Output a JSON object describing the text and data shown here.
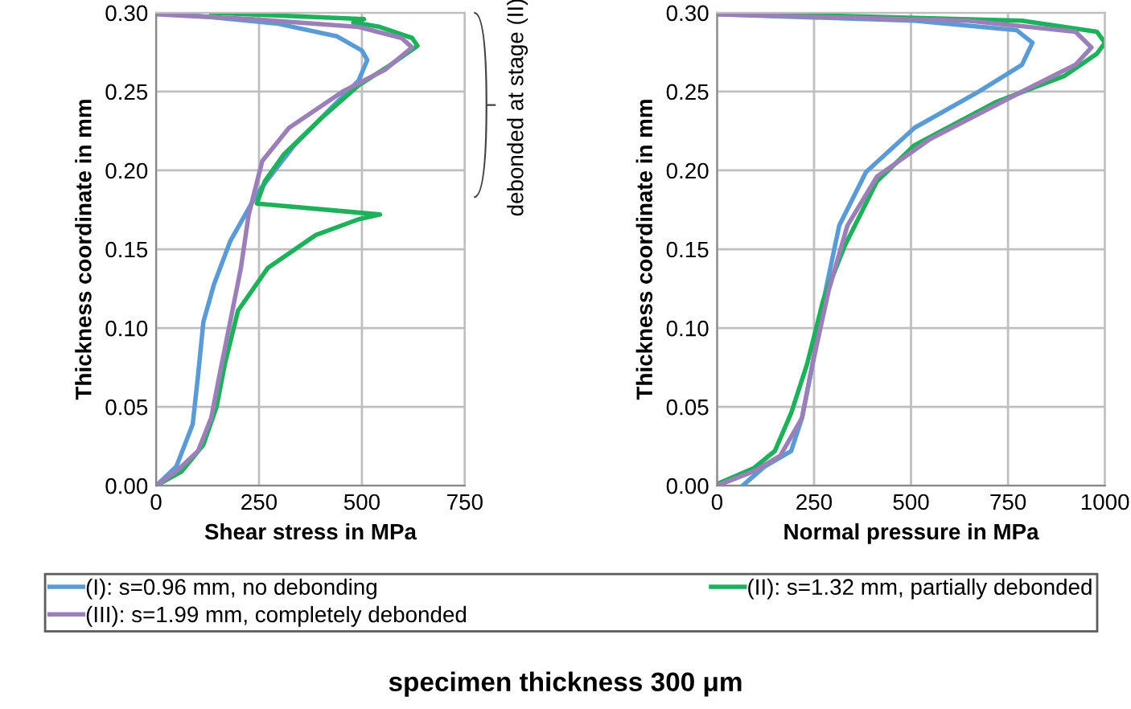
{
  "chart_data": [
    {
      "type": "line",
      "title": "specimen thickness 300 μm",
      "xlabel": "Shear stress in MPa",
      "ylabel": "Thickness coordinate in mm",
      "annotations": [
        "debonded at stage (II)"
      ],
      "xlim": [
        0,
        750
      ],
      "xticks": [
        0,
        250,
        500,
        750
      ],
      "ylim": [
        0,
        0.3
      ],
      "yticks": [
        {
          "value": 0,
          "label": "0.00"
        },
        {
          "value": 0.05,
          "label": "0.05"
        },
        {
          "value": 0.1,
          "label": "0.10"
        },
        {
          "value": 0.15,
          "label": "0.15"
        },
        {
          "value": 0.2,
          "label": "0.20"
        },
        {
          "value": 0.25,
          "label": "0.25"
        },
        {
          "value": 0.3,
          "label": "0.30"
        }
      ],
      "grid": true,
      "legend": "bottom",
      "marker": "none",
      "line_style": "solid",
      "series": [
        {
          "name": "(I): s=0.96 mm, no debonding",
          "color": "#5b9bd5",
          "x": [
            0,
            49,
            89,
            102,
            115,
            141,
            180,
            247,
            336,
            427,
            492,
            513,
            500,
            440,
            297,
            102,
            0
          ],
          "values": [
            0,
            0.012,
            0.039,
            0.07,
            0.104,
            0.128,
            0.155,
            0.186,
            0.216,
            0.24,
            0.257,
            0.27,
            0.276,
            0.285,
            0.293,
            0.298,
            0.3
          ]
        },
        {
          "name": "(II): s=1.32 mm, partially debonded",
          "color": "#1eb05a",
          "x": [
            0,
            62,
            115,
            147,
            167,
            199,
            271,
            388,
            492,
            544,
            245,
            264,
            310,
            401,
            492,
            570,
            635,
            622,
            544,
            479,
            505,
            134
          ],
          "values": [
            0,
            0.009,
            0.026,
            0.05,
            0.077,
            0.111,
            0.138,
            0.159,
            0.169,
            0.172,
            0.179,
            0.193,
            0.21,
            0.233,
            0.254,
            0.267,
            0.279,
            0.284,
            0.291,
            0.294,
            0.296,
            0.3
          ]
        },
        {
          "name": "(III): s=1.99 mm, completely debonded",
          "color": "#9b7fb8",
          "x": [
            0,
            49,
            102,
            134,
            154,
            180,
            206,
            225,
            258,
            323,
            453,
            557,
            622,
            596,
            492,
            232,
            0
          ],
          "values": [
            0,
            0.009,
            0.022,
            0.043,
            0.07,
            0.104,
            0.138,
            0.172,
            0.206,
            0.227,
            0.25,
            0.264,
            0.278,
            0.284,
            0.291,
            0.296,
            0.299
          ]
        }
      ]
    },
    {
      "type": "line",
      "xlabel": "Normal pressure in MPa",
      "ylabel": "Thickness coordinate in mm",
      "xlim": [
        0,
        1000
      ],
      "xticks": [
        0,
        250,
        500,
        750,
        1000
      ],
      "ylim": [
        0,
        0.3
      ],
      "yticks": [
        {
          "value": 0,
          "label": "0.00"
        },
        {
          "value": 0.05,
          "label": "0.05"
        },
        {
          "value": 0.1,
          "label": "0.10"
        },
        {
          "value": 0.15,
          "label": "0.15"
        },
        {
          "value": 0.2,
          "label": "0.20"
        },
        {
          "value": 0.25,
          "label": "0.25"
        },
        {
          "value": 0.3,
          "label": "0.30"
        }
      ],
      "grid": true,
      "legend": "bottom",
      "marker": "none",
      "line_style": "solid",
      "series": [
        {
          "name": "(I): s=0.96 mm, no debonding",
          "color": "#5b9bd5",
          "x": [
            66,
            122,
            191,
            219,
            246,
            280,
            315,
            384,
            509,
            675,
            786,
            813,
            772,
            509,
            0
          ],
          "values": [
            0,
            0.012,
            0.022,
            0.043,
            0.077,
            0.124,
            0.165,
            0.199,
            0.227,
            0.25,
            0.267,
            0.281,
            0.289,
            0.295,
            0.299
          ]
        },
        {
          "name": "(II): s=1.32 mm, partially debonded",
          "color": "#1eb05a",
          "x": [
            0,
            94,
            149,
            191,
            232,
            274,
            329,
            412,
            509,
            716,
            896,
            979,
            1000,
            979,
            786,
            0
          ],
          "values": [
            0.001,
            0.011,
            0.022,
            0.046,
            0.077,
            0.118,
            0.152,
            0.193,
            0.216,
            0.243,
            0.26,
            0.274,
            0.281,
            0.288,
            0.295,
            0.3
          ]
        },
        {
          "name": "(III): s=1.99 mm, completely debonded",
          "color": "#9b7fb8",
          "x": [
            0,
            94,
            163,
            219,
            246,
            288,
            336,
            412,
            550,
            786,
            924,
            965,
            924,
            647,
            0
          ],
          "values": [
            0,
            0.009,
            0.019,
            0.043,
            0.077,
            0.124,
            0.165,
            0.196,
            0.22,
            0.25,
            0.267,
            0.278,
            0.288,
            0.295,
            0.299
          ]
        }
      ]
    }
  ]
}
